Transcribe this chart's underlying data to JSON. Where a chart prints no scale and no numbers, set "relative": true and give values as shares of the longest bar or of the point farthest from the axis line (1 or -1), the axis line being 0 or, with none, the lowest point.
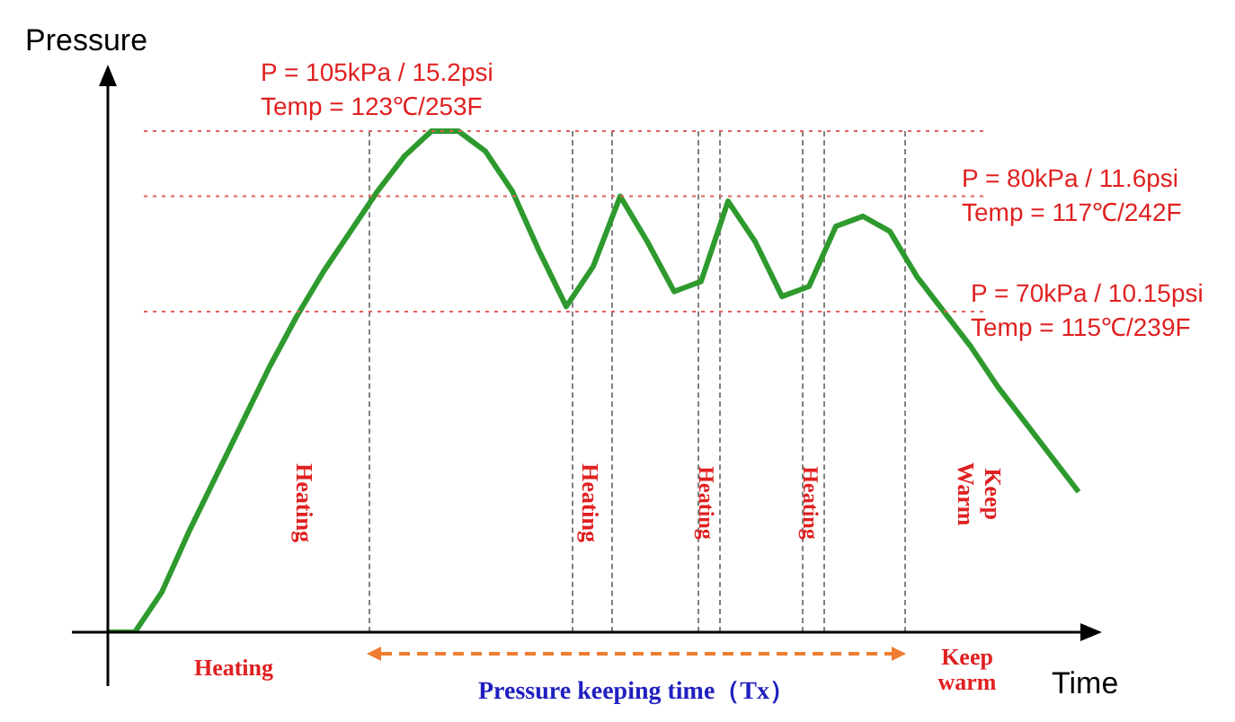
{
  "chart_data": {
    "type": "line",
    "relative": true,
    "xlabel": "Time",
    "ylabel": "Pressure",
    "tick_labels": false,
    "marker": "none",
    "line_style": "solid",
    "categories": [
      null,
      null,
      null,
      null,
      null,
      null,
      null,
      null,
      null,
      null,
      null,
      null,
      null,
      null,
      null,
      null,
      null,
      null,
      null,
      null,
      null,
      null,
      null,
      null,
      null,
      null,
      null,
      null,
      null,
      null,
      null,
      null,
      null,
      null,
      null,
      null,
      null
    ],
    "series": [
      {
        "color": "#2e9a2e",
        "values": [
          0,
          0,
          0.08,
          0.2,
          0.31,
          0.42,
          0.53,
          0.63,
          0.72,
          0.8,
          0.88,
          0.95,
          1,
          1,
          0.96,
          0.88,
          0.76,
          0.65,
          0.73,
          0.87,
          0.78,
          0.68,
          0.7,
          0.86,
          0.78,
          0.67,
          0.69,
          0.81,
          0.83,
          0.8,
          0.71,
          0.64,
          0.57,
          0.49,
          0.42,
          0.35,
          0.28
        ]
      }
    ],
    "ref_lines": [
      {
        "axis": "y",
        "value": 1,
        "color": "#e06060",
        "line_style": "dotted"
      },
      {
        "axis": "y",
        "value": 0.87,
        "color": "#e06060",
        "line_style": "dotted"
      },
      {
        "axis": "y",
        "value": 0.64,
        "color": "#e06060",
        "line_style": "dotted"
      }
    ],
    "annotations": [
      "P = 105kPa / 15.2psi",
      "Temp = 123℃/253F",
      "P = 80kPa / 11.6psi",
      "Temp = 117℃/242F",
      "P = 70kPa / 10.15psi",
      "Temp = 115℃/239F",
      "Heating",
      "Heating",
      "Heating",
      "Heating",
      "Keep Warm",
      "Heating",
      "Pressure keeping time（Tx）",
      "Keep warm"
    ]
  }
}
